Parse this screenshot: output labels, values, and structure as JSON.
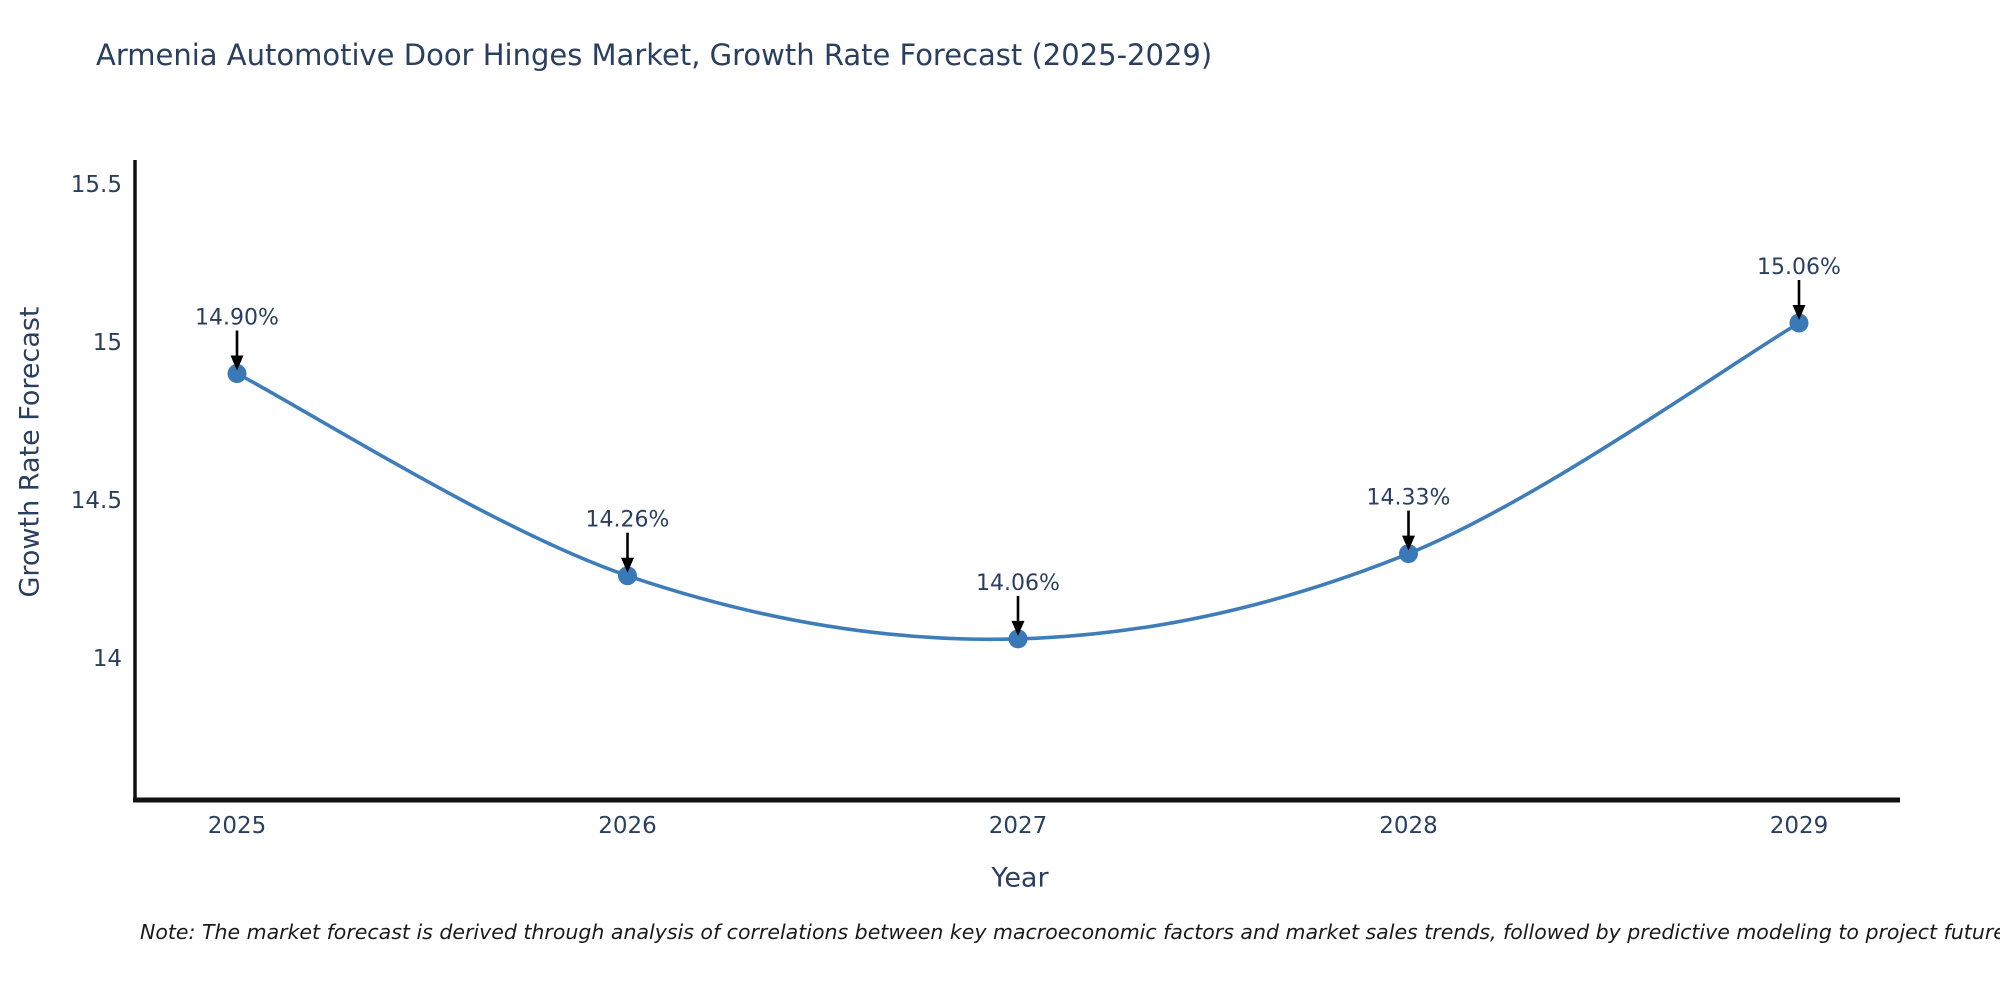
{
  "title": "Armenia Automotive Door Hinges Market, Growth Rate Forecast (2025-2029)",
  "note": "Note: The market forecast is derived through analysis of correlations between key macroeconomic factors and market sales trends, followed by predictive modeling to project future sal",
  "chart_data": {
    "type": "line",
    "title": "Armenia Automotive Door Hinges Market, Growth Rate Forecast (2025-2029)",
    "xlabel": "Year",
    "ylabel": "Growth Rate Forecast",
    "categories": [
      "2025",
      "2026",
      "2027",
      "2028",
      "2029"
    ],
    "series": [
      {
        "name": "Growth Rate Forecast",
        "values": [
          14.9,
          14.26,
          14.06,
          14.33,
          15.06
        ],
        "point_labels": [
          "14.90%",
          "14.26%",
          "14.06%",
          "14.33%",
          "15.06%"
        ]
      }
    ],
    "y_ticks": [
      15.5,
      15,
      14.5,
      14
    ],
    "y_tick_labels": [
      "15.5",
      "15",
      "14.5",
      "14"
    ],
    "ylim": [
      13.55,
      15.576
    ],
    "grid": false,
    "legend": false,
    "annotations": "arrow-down-to-point"
  },
  "colors": {
    "text": "#2a3f5f",
    "axis_line": "#111111",
    "line": "#3f7db8",
    "marker": "#3a79b7",
    "arrow": "#000000",
    "background": "#ffffff"
  }
}
